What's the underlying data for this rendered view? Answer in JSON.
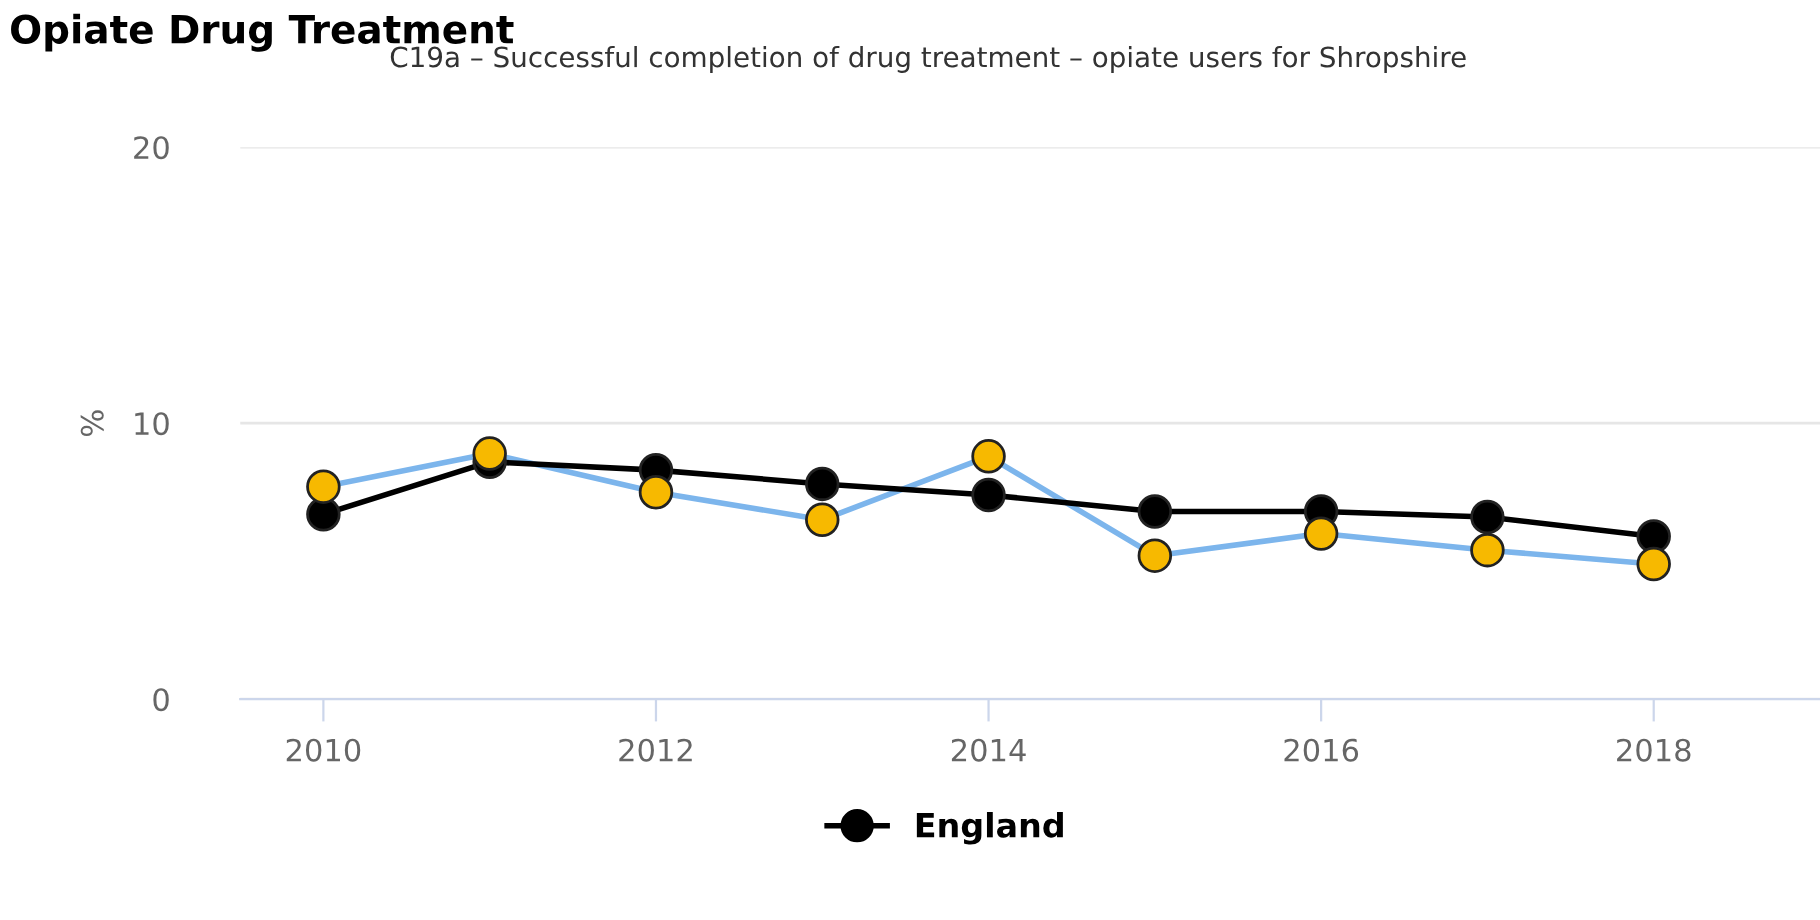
{
  "chart_data": {
    "type": "line",
    "title": "Opiate Drug Treatment",
    "subtitle": "C19a – Successful completion of drug treatment – opiate users for Shropshire",
    "ylabel": "%",
    "x": [
      2010,
      2011,
      2012,
      2013,
      2014,
      2015,
      2016,
      2017,
      2018
    ],
    "series": [
      {
        "color": "#7cb5ec",
        "colors": [
          "#f7b900",
          "#f7b900",
          "#f7b900",
          "#f7b900",
          "#f7b900",
          "#f7b900",
          "#f7b900",
          "#f7b900",
          "#f7b900"
        ],
        "values": [
          7.7,
          8.9,
          7.5,
          6.5,
          8.8,
          5.2,
          6.0,
          5.4,
          4.9
        ]
      },
      {
        "name": "England",
        "color": "#000000",
        "values": [
          6.7,
          8.6,
          8.3,
          7.8,
          7.4,
          6.8,
          6.8,
          6.6,
          5.9
        ]
      }
    ],
    "xlim": [
      2009.5,
      2019
    ],
    "xticks": [
      2010,
      2012,
      2014,
      2016,
      2018
    ],
    "ylim": [
      0,
      20
    ],
    "yticks": [
      0,
      10,
      20
    ],
    "grid": "y",
    "legend": "bottom",
    "marker": "circle",
    "line_style": "solid"
  }
}
